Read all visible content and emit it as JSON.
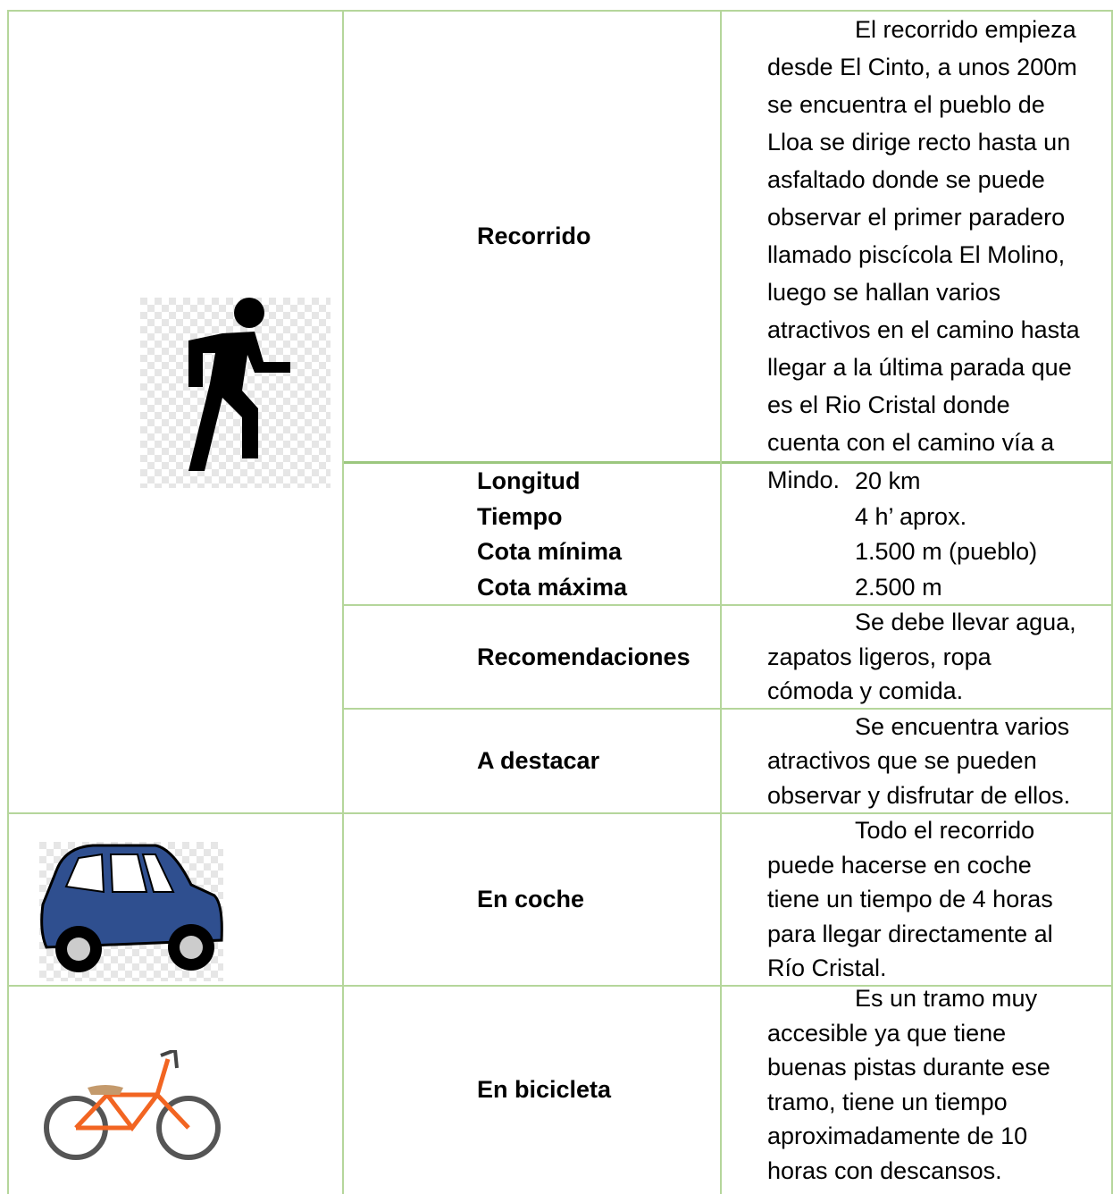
{
  "rows": [
    {
      "label": "Recorrido",
      "text": [
        "El recorrido empieza",
        "desde El Cinto, a unos 200m",
        "se encuentra el pueblo de",
        "Lloa se dirige recto hasta un",
        "asfaltado donde se puede",
        "observar el primer paradero",
        "llamado piscícola El Molino,",
        "luego se hallan varios",
        "atractivos en el camino hasta",
        "llegar a la última parada que",
        "es el Rio Cristal donde",
        "cuenta con el camino vía a",
        "Mindo."
      ]
    },
    {
      "labels": [
        "Longitud",
        "Tiempo",
        "Cota mínima",
        "Cota máxima"
      ],
      "values": [
        "20 km",
        "4 h’ aprox.",
        "1.500 m (pueblo)",
        "2.500 m"
      ]
    },
    {
      "label": "Recomendaciones",
      "text": [
        "Se debe llevar agua,",
        "zapatos ligeros, ropa",
        "cómoda y comida."
      ]
    },
    {
      "label": "A destacar",
      "text": [
        "Se encuentra varios",
        "atractivos que se pueden",
        "observar y disfrutar de ellos."
      ]
    },
    {
      "label": "En coche",
      "text": [
        "Todo el recorrido",
        "puede hacerse en coche",
        "tiene un tiempo de 4 horas",
        "para llegar directamente al",
        "Río Cristal."
      ]
    },
    {
      "label": "En bicicleta",
      "text": [
        "Es un tramo muy",
        "accesible ya que tiene",
        "buenas pistas durante ese",
        "tramo, tiene un tiempo",
        "aproximadamente de 10",
        "horas con descansos."
      ]
    }
  ]
}
